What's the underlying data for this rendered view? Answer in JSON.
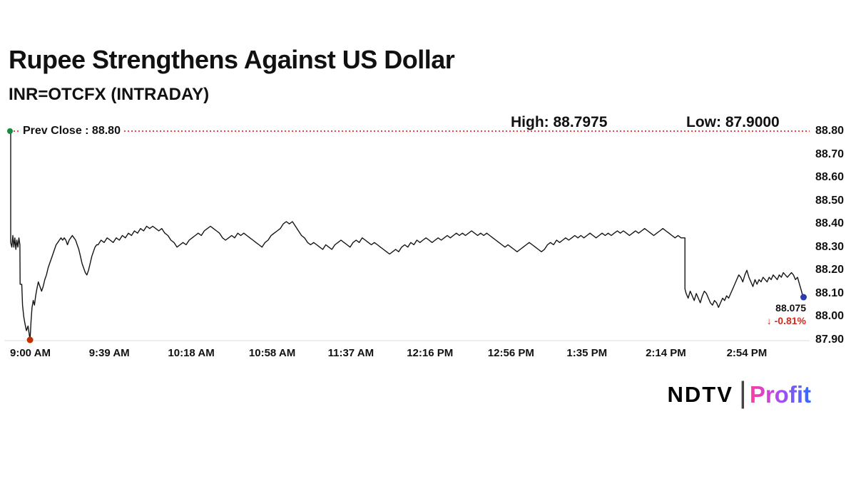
{
  "chart_data": {
    "type": "line",
    "title": "Rupee Strengthens Against US Dollar",
    "subtitle": "INR=OTCFX (INTRADAY)",
    "prev_close_label": "Prev Close : 88.80",
    "prev_close": 88.8,
    "high_text": "High: 88.7975",
    "high": 88.7975,
    "low_text": "Low: 87.9000",
    "low": 87.9,
    "last_price": 88.075,
    "last_price_label": "88.075",
    "change_text": "↓ -0.81%",
    "change_pct": -0.81,
    "grid": false,
    "y_axis_side": "right",
    "ylim": [
      87.9,
      88.8
    ],
    "x_range_minutes": [
      0,
      395
    ],
    "y_tick_labels": [
      "88.80",
      "88.70",
      "88.60",
      "88.50",
      "88.40",
      "88.30",
      "88.20",
      "88.10",
      "88.00",
      "87.90"
    ],
    "x_ticks": [
      {
        "t": 0,
        "label": "9:00 AM"
      },
      {
        "t": 39,
        "label": "9:39 AM"
      },
      {
        "t": 78,
        "label": "10:18 AM"
      },
      {
        "t": 118,
        "label": "10:58 AM"
      },
      {
        "t": 157,
        "label": "11:37 AM"
      },
      {
        "t": 196,
        "label": "12:16 PM"
      },
      {
        "t": 236,
        "label": "12:56 PM"
      },
      {
        "t": 275,
        "label": "1:35 PM"
      },
      {
        "t": 314,
        "label": "2:14 PM"
      },
      {
        "t": 354,
        "label": "2:54 PM"
      }
    ],
    "colors": {
      "line": "#141414",
      "prev_close_line": "#f40000",
      "negative": "#d32b1c",
      "marker_start": "#168a3e",
      "marker_low": "#c03000",
      "marker_last": "#2e3ab0",
      "axis_line": "#dddddd"
    },
    "points": [
      [
        0,
        88.8
      ],
      [
        0.35,
        88.8
      ],
      [
        0.35,
        88.32
      ],
      [
        0.9,
        88.3
      ],
      [
        1.4,
        88.35
      ],
      [
        1.9,
        88.3
      ],
      [
        2.4,
        88.34
      ],
      [
        2.9,
        88.29
      ],
      [
        3.4,
        88.33
      ],
      [
        3.9,
        88.3
      ],
      [
        4.4,
        88.34
      ],
      [
        4.9,
        88.31
      ],
      [
        5.0,
        88.14
      ],
      [
        5.8,
        88.14
      ],
      [
        6.2,
        88.05
      ],
      [
        6.8,
        88.0
      ],
      [
        7.4,
        87.97
      ],
      [
        8.1,
        87.94
      ],
      [
        8.9,
        87.96
      ],
      [
        9.9,
        87.9
      ],
      [
        10.4,
        87.98
      ],
      [
        10.9,
        88.04
      ],
      [
        11.5,
        88.07
      ],
      [
        12.1,
        88.05
      ],
      [
        12.7,
        88.09
      ],
      [
        13.3,
        88.12
      ],
      [
        14,
        88.15
      ],
      [
        14.8,
        88.13
      ],
      [
        15.6,
        88.11
      ],
      [
        16.4,
        88.13
      ],
      [
        17.2,
        88.16
      ],
      [
        18,
        88.18
      ],
      [
        18.8,
        88.21
      ],
      [
        19.6,
        88.23
      ],
      [
        20.4,
        88.25
      ],
      [
        21.2,
        88.27
      ],
      [
        22,
        88.29
      ],
      [
        22.8,
        88.31
      ],
      [
        23.6,
        88.32
      ],
      [
        24.4,
        88.33
      ],
      [
        25.2,
        88.34
      ],
      [
        26,
        88.33
      ],
      [
        26.8,
        88.34
      ],
      [
        27.6,
        88.33
      ],
      [
        28.4,
        88.31
      ],
      [
        29.2,
        88.33
      ],
      [
        30,
        88.34
      ],
      [
        30.8,
        88.35
      ],
      [
        31.6,
        88.34
      ],
      [
        32.4,
        88.33
      ],
      [
        33.2,
        88.31
      ],
      [
        34,
        88.29
      ],
      [
        34.8,
        88.26
      ],
      [
        35.6,
        88.23
      ],
      [
        36.4,
        88.21
      ],
      [
        37.2,
        88.19
      ],
      [
        38,
        88.18
      ],
      [
        38.8,
        88.2
      ],
      [
        39.6,
        88.23
      ],
      [
        40.4,
        88.26
      ],
      [
        41.2,
        88.28
      ],
      [
        42,
        88.3
      ],
      [
        42.8,
        88.31
      ],
      [
        43.5,
        88.31
      ],
      [
        45,
        88.33
      ],
      [
        46.5,
        88.32
      ],
      [
        48,
        88.34
      ],
      [
        49.5,
        88.33
      ],
      [
        51,
        88.32
      ],
      [
        52.5,
        88.34
      ],
      [
        54,
        88.33
      ],
      [
        55.5,
        88.35
      ],
      [
        57,
        88.34
      ],
      [
        58.5,
        88.36
      ],
      [
        60,
        88.35
      ],
      [
        61.5,
        88.37
      ],
      [
        63,
        88.36
      ],
      [
        64.5,
        88.38
      ],
      [
        66,
        88.37
      ],
      [
        67.5,
        88.39
      ],
      [
        69,
        88.38
      ],
      [
        70.5,
        88.39
      ],
      [
        72,
        88.38
      ],
      [
        73.5,
        88.37
      ],
      [
        75,
        88.38
      ],
      [
        76.5,
        88.36
      ],
      [
        78,
        88.35
      ],
      [
        79.5,
        88.33
      ],
      [
        81,
        88.32
      ],
      [
        82.5,
        88.3
      ],
      [
        84,
        88.31
      ],
      [
        85.5,
        88.32
      ],
      [
        87,
        88.31
      ],
      [
        88.5,
        88.33
      ],
      [
        90,
        88.34
      ],
      [
        91.5,
        88.35
      ],
      [
        93,
        88.36
      ],
      [
        94.5,
        88.35
      ],
      [
        96,
        88.37
      ],
      [
        97.5,
        88.38
      ],
      [
        99,
        88.39
      ],
      [
        100.5,
        88.38
      ],
      [
        102,
        88.37
      ],
      [
        103.5,
        88.36
      ],
      [
        105,
        88.34
      ],
      [
        106.5,
        88.33
      ],
      [
        108,
        88.34
      ],
      [
        109.5,
        88.35
      ],
      [
        111,
        88.34
      ],
      [
        112.5,
        88.36
      ],
      [
        114,
        88.35
      ],
      [
        115.5,
        88.36
      ],
      [
        117,
        88.35
      ],
      [
        118.5,
        88.34
      ],
      [
        120,
        88.33
      ],
      [
        121.5,
        88.32
      ],
      [
        123,
        88.31
      ],
      [
        124.5,
        88.3
      ],
      [
        126,
        88.32
      ],
      [
        127.5,
        88.33
      ],
      [
        129,
        88.35
      ],
      [
        130.5,
        88.36
      ],
      [
        132,
        88.37
      ],
      [
        133.5,
        88.38
      ],
      [
        135,
        88.4
      ],
      [
        136.5,
        88.41
      ],
      [
        138,
        88.4
      ],
      [
        139.5,
        88.41
      ],
      [
        141,
        88.39
      ],
      [
        142.5,
        88.37
      ],
      [
        144,
        88.35
      ],
      [
        145.5,
        88.34
      ],
      [
        147,
        88.32
      ],
      [
        148.5,
        88.31
      ],
      [
        150,
        88.32
      ],
      [
        151.5,
        88.31
      ],
      [
        153,
        88.3
      ],
      [
        154.5,
        88.29
      ],
      [
        156,
        88.31
      ],
      [
        157.5,
        88.3
      ],
      [
        159,
        88.29
      ],
      [
        160.5,
        88.31
      ],
      [
        162,
        88.32
      ],
      [
        163.5,
        88.33
      ],
      [
        165,
        88.32
      ],
      [
        166.5,
        88.31
      ],
      [
        168,
        88.3
      ],
      [
        169.5,
        88.32
      ],
      [
        171,
        88.33
      ],
      [
        172.5,
        88.32
      ],
      [
        174,
        88.34
      ],
      [
        175.5,
        88.33
      ],
      [
        177,
        88.32
      ],
      [
        178.5,
        88.31
      ],
      [
        180,
        88.32
      ],
      [
        181.5,
        88.31
      ],
      [
        183,
        88.3
      ],
      [
        184.5,
        88.29
      ],
      [
        186,
        88.28
      ],
      [
        187.5,
        88.27
      ],
      [
        189,
        88.28
      ],
      [
        190.5,
        88.29
      ],
      [
        192,
        88.28
      ],
      [
        193.5,
        88.3
      ],
      [
        195,
        88.31
      ],
      [
        196.5,
        88.3
      ],
      [
        198,
        88.32
      ],
      [
        199.5,
        88.31
      ],
      [
        201,
        88.33
      ],
      [
        202.5,
        88.32
      ],
      [
        204,
        88.33
      ],
      [
        205.5,
        88.34
      ],
      [
        207,
        88.33
      ],
      [
        208.5,
        88.32
      ],
      [
        210,
        88.33
      ],
      [
        211.5,
        88.34
      ],
      [
        213,
        88.33
      ],
      [
        214.5,
        88.34
      ],
      [
        216,
        88.35
      ],
      [
        217.5,
        88.34
      ],
      [
        219,
        88.35
      ],
      [
        220.5,
        88.36
      ],
      [
        222,
        88.35
      ],
      [
        223.5,
        88.36
      ],
      [
        225,
        88.35
      ],
      [
        226.5,
        88.36
      ],
      [
        228,
        88.37
      ],
      [
        229.5,
        88.36
      ],
      [
        231,
        88.35
      ],
      [
        232.5,
        88.36
      ],
      [
        234,
        88.35
      ],
      [
        235.5,
        88.36
      ],
      [
        237,
        88.35
      ],
      [
        238.5,
        88.34
      ],
      [
        240,
        88.33
      ],
      [
        241.5,
        88.32
      ],
      [
        243,
        88.31
      ],
      [
        244.5,
        88.3
      ],
      [
        246,
        88.31
      ],
      [
        247.5,
        88.3
      ],
      [
        249,
        88.29
      ],
      [
        250.5,
        88.28
      ],
      [
        252,
        88.29
      ],
      [
        253.5,
        88.3
      ],
      [
        255,
        88.31
      ],
      [
        256.5,
        88.32
      ],
      [
        258,
        88.31
      ],
      [
        259.5,
        88.3
      ],
      [
        261,
        88.29
      ],
      [
        262.5,
        88.28
      ],
      [
        264,
        88.29
      ],
      [
        265.5,
        88.31
      ],
      [
        267,
        88.32
      ],
      [
        268.5,
        88.31
      ],
      [
        270,
        88.33
      ],
      [
        271.5,
        88.32
      ],
      [
        273,
        88.33
      ],
      [
        274.5,
        88.34
      ],
      [
        276,
        88.33
      ],
      [
        277.5,
        88.34
      ],
      [
        279,
        88.35
      ],
      [
        280.5,
        88.34
      ],
      [
        282,
        88.35
      ],
      [
        283.5,
        88.34
      ],
      [
        285,
        88.35
      ],
      [
        286.5,
        88.36
      ],
      [
        288,
        88.35
      ],
      [
        289.5,
        88.34
      ],
      [
        291,
        88.35
      ],
      [
        292.5,
        88.36
      ],
      [
        294,
        88.35
      ],
      [
        295.5,
        88.36
      ],
      [
        297,
        88.35
      ],
      [
        298.5,
        88.36
      ],
      [
        300,
        88.37
      ],
      [
        301.5,
        88.36
      ],
      [
        303,
        88.37
      ],
      [
        304.5,
        88.36
      ],
      [
        306,
        88.35
      ],
      [
        307.5,
        88.36
      ],
      [
        309,
        88.37
      ],
      [
        310.5,
        88.36
      ],
      [
        312,
        88.37
      ],
      [
        313.5,
        88.38
      ],
      [
        315,
        88.37
      ],
      [
        316.5,
        88.36
      ],
      [
        318,
        88.35
      ],
      [
        319.5,
        88.36
      ],
      [
        321,
        88.37
      ],
      [
        322.5,
        88.38
      ],
      [
        324,
        88.37
      ],
      [
        325.5,
        88.36
      ],
      [
        327,
        88.35
      ],
      [
        328.5,
        88.34
      ],
      [
        330,
        88.35
      ],
      [
        331.5,
        88.34
      ],
      [
        333,
        88.34
      ],
      [
        333.4,
        88.34
      ],
      [
        333.4,
        88.12
      ],
      [
        334,
        88.1
      ],
      [
        335,
        88.08
      ],
      [
        336,
        88.11
      ],
      [
        337,
        88.09
      ],
      [
        338,
        88.07
      ],
      [
        339,
        88.1
      ],
      [
        340,
        88.08
      ],
      [
        341,
        88.06
      ],
      [
        342,
        88.09
      ],
      [
        343,
        88.11
      ],
      [
        344,
        88.1
      ],
      [
        345,
        88.08
      ],
      [
        346,
        88.06
      ],
      [
        347,
        88.05
      ],
      [
        348,
        88.07
      ],
      [
        349,
        88.06
      ],
      [
        350,
        88.04
      ],
      [
        351,
        88.06
      ],
      [
        352,
        88.08
      ],
      [
        353,
        88.07
      ],
      [
        354,
        88.09
      ],
      [
        355,
        88.08
      ],
      [
        356,
        88.1
      ],
      [
        357,
        88.12
      ],
      [
        358,
        88.14
      ],
      [
        359,
        88.16
      ],
      [
        360,
        88.18
      ],
      [
        361,
        88.17
      ],
      [
        362,
        88.15
      ],
      [
        363,
        88.18
      ],
      [
        364,
        88.2
      ],
      [
        365,
        88.17
      ],
      [
        366,
        88.15
      ],
      [
        367,
        88.13
      ],
      [
        368,
        88.16
      ],
      [
        369,
        88.14
      ],
      [
        370,
        88.16
      ],
      [
        371,
        88.15
      ],
      [
        372,
        88.17
      ],
      [
        373,
        88.16
      ],
      [
        374,
        88.15
      ],
      [
        375,
        88.17
      ],
      [
        376,
        88.16
      ],
      [
        377,
        88.18
      ],
      [
        378,
        88.17
      ],
      [
        379,
        88.16
      ],
      [
        380,
        88.18
      ],
      [
        381,
        88.17
      ],
      [
        382,
        88.19
      ],
      [
        383,
        88.18
      ],
      [
        384,
        88.17
      ],
      [
        385,
        88.18
      ],
      [
        386,
        88.19
      ],
      [
        387,
        88.18
      ],
      [
        388,
        88.16
      ],
      [
        389,
        88.17
      ],
      [
        390,
        88.14
      ],
      [
        391,
        88.11
      ],
      [
        392,
        88.075
      ]
    ]
  },
  "branding": {
    "ndtv": "NDTV",
    "separator": "|",
    "profit": "Profit",
    "profit_gradient": [
      "#ff3da6",
      "#a94df2",
      "#2f6bff"
    ]
  }
}
